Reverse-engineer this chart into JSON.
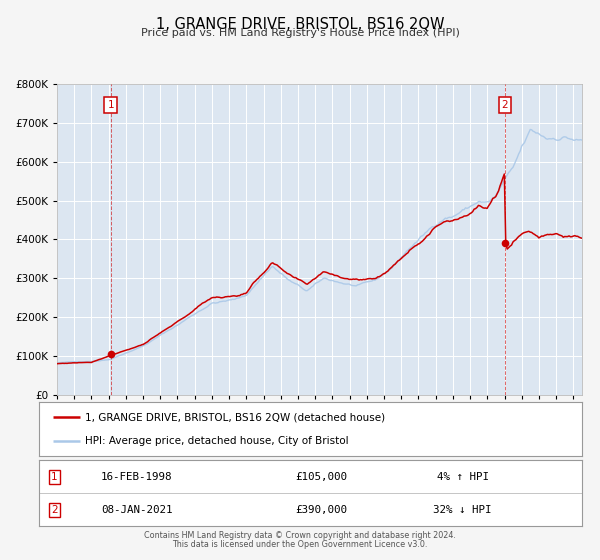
{
  "title": "1, GRANGE DRIVE, BRISTOL, BS16 2QW",
  "subtitle": "Price paid vs. HM Land Registry's House Price Index (HPI)",
  "legend_line1": "1, GRANGE DRIVE, BRISTOL, BS16 2QW (detached house)",
  "legend_line2": "HPI: Average price, detached house, City of Bristol",
  "table_rows": [
    {
      "num": "1",
      "date": "16-FEB-1998",
      "price": "£105,000",
      "change": "4% ↑ HPI"
    },
    {
      "num": "2",
      "date": "08-JAN-2021",
      "price": "£390,000",
      "change": "32% ↓ HPI"
    }
  ],
  "footer1": "Contains HM Land Registry data © Crown copyright and database right 2024.",
  "footer2": "This data is licensed under the Open Government Licence v3.0.",
  "sale1_date": 1998.12,
  "sale1_price": 105000,
  "sale2_date": 2021.03,
  "sale2_price": 390000,
  "ylim": [
    0,
    800000
  ],
  "xlim_start": 1995.0,
  "xlim_end": 2025.5,
  "fig_bg_color": "#f5f5f5",
  "plot_bg_color": "#dce6f1",
  "grid_color": "#ffffff",
  "red_line_color": "#cc0000",
  "blue_line_color": "#aac8e8",
  "dashed_line_color": "#cc0000",
  "marker_color": "#cc0000",
  "annotation_box_color": "#cc0000",
  "legend_border_color": "#999999",
  "table_border_color": "#999999"
}
